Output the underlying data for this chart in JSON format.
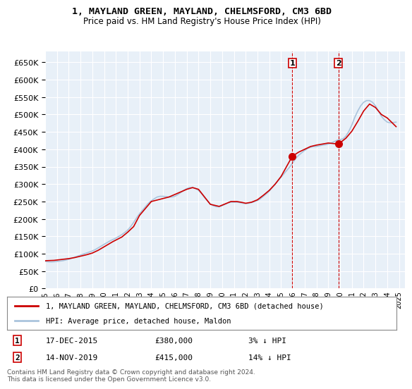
{
  "title": "1, MAYLAND GREEN, MAYLAND, CHELMSFORD, CM3 6BD",
  "subtitle": "Price paid vs. HM Land Registry's House Price Index (HPI)",
  "ylim": [
    0,
    680000
  ],
  "yticks": [
    0,
    50000,
    100000,
    150000,
    200000,
    250000,
    300000,
    350000,
    400000,
    450000,
    500000,
    550000,
    600000,
    650000
  ],
  "xlabel_years": [
    "1995",
    "1996",
    "1997",
    "1998",
    "1999",
    "2000",
    "2001",
    "2002",
    "2003",
    "2004",
    "2005",
    "2006",
    "2007",
    "2008",
    "2009",
    "2010",
    "2011",
    "2012",
    "2013",
    "2014",
    "2015",
    "2016",
    "2017",
    "2018",
    "2019",
    "2020",
    "2021",
    "2022",
    "2023",
    "2024",
    "2025"
  ],
  "hpi_color": "#aac4dd",
  "price_color": "#cc0000",
  "sale1_date": "2015-12-17",
  "sale1_price": 380000,
  "sale1_label": "17-DEC-2015",
  "sale1_hpi_pct": "3% ↓ HPI",
  "sale1_num": "1",
  "sale2_date": "2019-11-14",
  "sale2_price": 415000,
  "sale2_label": "14-NOV-2019",
  "sale2_hpi_pct": "14% ↓ HPI",
  "sale2_num": "2",
  "legend_line1": "1, MAYLAND GREEN, MAYLAND, CHELMSFORD, CM3 6BD (detached house)",
  "legend_line2": "HPI: Average price, detached house, Maldon",
  "footer": "Contains HM Land Registry data © Crown copyright and database right 2024.\nThis data is licensed under the Open Government Licence v3.0.",
  "background_color": "#ffffff",
  "plot_bg_color": "#e8f0f8",
  "grid_color": "#ffffff",
  "hpi_data_x": [
    1995.0,
    1995.25,
    1995.5,
    1995.75,
    1996.0,
    1996.25,
    1996.5,
    1996.75,
    1997.0,
    1997.25,
    1997.5,
    1997.75,
    1998.0,
    1998.25,
    1998.5,
    1998.75,
    1999.0,
    1999.25,
    1999.5,
    1999.75,
    2000.0,
    2000.25,
    2000.5,
    2000.75,
    2001.0,
    2001.25,
    2001.5,
    2001.75,
    2002.0,
    2002.25,
    2002.5,
    2002.75,
    2003.0,
    2003.25,
    2003.5,
    2003.75,
    2004.0,
    2004.25,
    2004.5,
    2004.75,
    2005.0,
    2005.25,
    2005.5,
    2005.75,
    2006.0,
    2006.25,
    2006.5,
    2006.75,
    2007.0,
    2007.25,
    2007.5,
    2007.75,
    2008.0,
    2008.25,
    2008.5,
    2008.75,
    2009.0,
    2009.25,
    2009.5,
    2009.75,
    2010.0,
    2010.25,
    2010.5,
    2010.75,
    2011.0,
    2011.25,
    2011.5,
    2011.75,
    2012.0,
    2012.25,
    2012.5,
    2012.75,
    2013.0,
    2013.25,
    2013.5,
    2013.75,
    2014.0,
    2014.25,
    2014.5,
    2014.75,
    2015.0,
    2015.25,
    2015.5,
    2015.75,
    2016.0,
    2016.25,
    2016.5,
    2016.75,
    2017.0,
    2017.25,
    2017.5,
    2017.75,
    2018.0,
    2018.25,
    2018.5,
    2018.75,
    2019.0,
    2019.25,
    2019.5,
    2019.75,
    2020.0,
    2020.25,
    2020.5,
    2020.75,
    2021.0,
    2021.25,
    2021.5,
    2021.75,
    2022.0,
    2022.25,
    2022.5,
    2022.75,
    2023.0,
    2023.25,
    2023.5,
    2023.75,
    2024.0,
    2024.25,
    2024.5,
    2024.75
  ],
  "hpi_data_y": [
    78000,
    77000,
    76500,
    77000,
    78000,
    79000,
    80000,
    82000,
    84000,
    87000,
    90000,
    93000,
    96000,
    99000,
    102000,
    105000,
    108000,
    112000,
    117000,
    122000,
    127000,
    132000,
    137000,
    141000,
    145000,
    150000,
    155000,
    161000,
    168000,
    178000,
    190000,
    203000,
    215000,
    225000,
    235000,
    245000,
    252000,
    258000,
    263000,
    265000,
    265000,
    264000,
    263000,
    263000,
    265000,
    270000,
    276000,
    282000,
    287000,
    290000,
    290000,
    287000,
    282000,
    273000,
    262000,
    252000,
    243000,
    238000,
    235000,
    235000,
    238000,
    242000,
    246000,
    248000,
    248000,
    248000,
    247000,
    245000,
    244000,
    245000,
    247000,
    250000,
    253000,
    258000,
    265000,
    272000,
    280000,
    290000,
    300000,
    310000,
    320000,
    330000,
    340000,
    350000,
    362000,
    374000,
    383000,
    390000,
    397000,
    402000,
    406000,
    408000,
    408000,
    410000,
    412000,
    413000,
    415000,
    418000,
    422000,
    426000,
    428000,
    430000,
    438000,
    452000,
    470000,
    492000,
    510000,
    525000,
    535000,
    540000,
    540000,
    535000,
    525000,
    510000,
    495000,
    485000,
    478000,
    476000,
    477000,
    478000
  ],
  "price_data_x": [
    1995.0,
    1995.75,
    1997.0,
    1997.5,
    1998.5,
    1999.0,
    1999.5,
    2000.0,
    2000.75,
    2001.5,
    2002.0,
    2002.5,
    2003.0,
    2004.0,
    2005.5,
    2007.0,
    2007.5,
    2008.0,
    2009.0,
    2009.5,
    2009.75,
    2010.25,
    2010.75,
    2011.25,
    2011.75,
    2012.0,
    2012.5,
    2013.0,
    2013.5,
    2014.0,
    2014.5,
    2015.0,
    2015.95,
    2016.5,
    2017.0,
    2017.5,
    2018.0,
    2018.5,
    2019.0,
    2019.87,
    2020.5,
    2021.0,
    2021.5,
    2022.0,
    2022.5,
    2023.0,
    2023.5,
    2024.0,
    2024.75
  ],
  "price_data_y": [
    80000,
    81000,
    86000,
    89000,
    97000,
    102000,
    110000,
    120000,
    135000,
    148000,
    162000,
    178000,
    210000,
    250000,
    263000,
    285000,
    290000,
    285000,
    242000,
    238000,
    236000,
    243000,
    250000,
    250000,
    247000,
    245000,
    248000,
    255000,
    268000,
    282000,
    300000,
    322000,
    380000,
    392000,
    400000,
    408000,
    412000,
    415000,
    418000,
    415000,
    432000,
    452000,
    480000,
    510000,
    530000,
    520000,
    500000,
    490000,
    465000
  ]
}
